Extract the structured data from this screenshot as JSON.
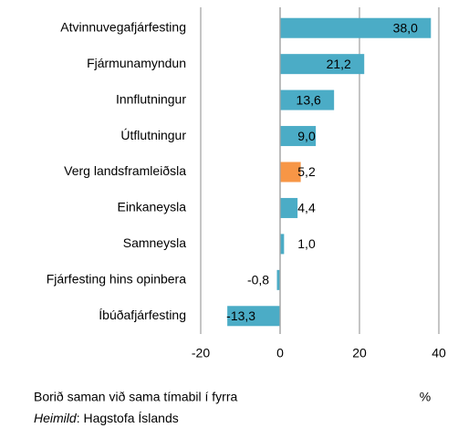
{
  "chart_data": {
    "type": "hbar",
    "categories": [
      "Atvinnuvegafjárfesting",
      "Fjármunamyndun",
      "Innflutningur",
      "Útflutningur",
      "Verg landsframleiðsla",
      "Einkaneysla",
      "Samneysla",
      "Fjárfesting hins opinbera",
      "Íbúðafjárfesting"
    ],
    "values": [
      38.0,
      21.2,
      13.6,
      9.0,
      5.2,
      4.4,
      1.0,
      -0.8,
      -13.3
    ],
    "value_labels": [
      "38,0",
      "21,2",
      "13,6",
      "9,0",
      "5,2",
      "4,4",
      "1,0",
      "-0,8",
      "-13,3"
    ],
    "colors": [
      "#4bacc6",
      "#4bacc6",
      "#4bacc6",
      "#4bacc6",
      "#f79646",
      "#4bacc6",
      "#4bacc6",
      "#4bacc6",
      "#4bacc6"
    ],
    "xlim": [
      -20,
      40
    ],
    "xticks": [
      -20,
      0,
      20,
      40
    ],
    "grid": true,
    "unit": "%",
    "note": "Borið saman við sama tímabil í fyrra",
    "source": {
      "label": "Heimild",
      "text": ": Hagstofa Íslands"
    }
  }
}
